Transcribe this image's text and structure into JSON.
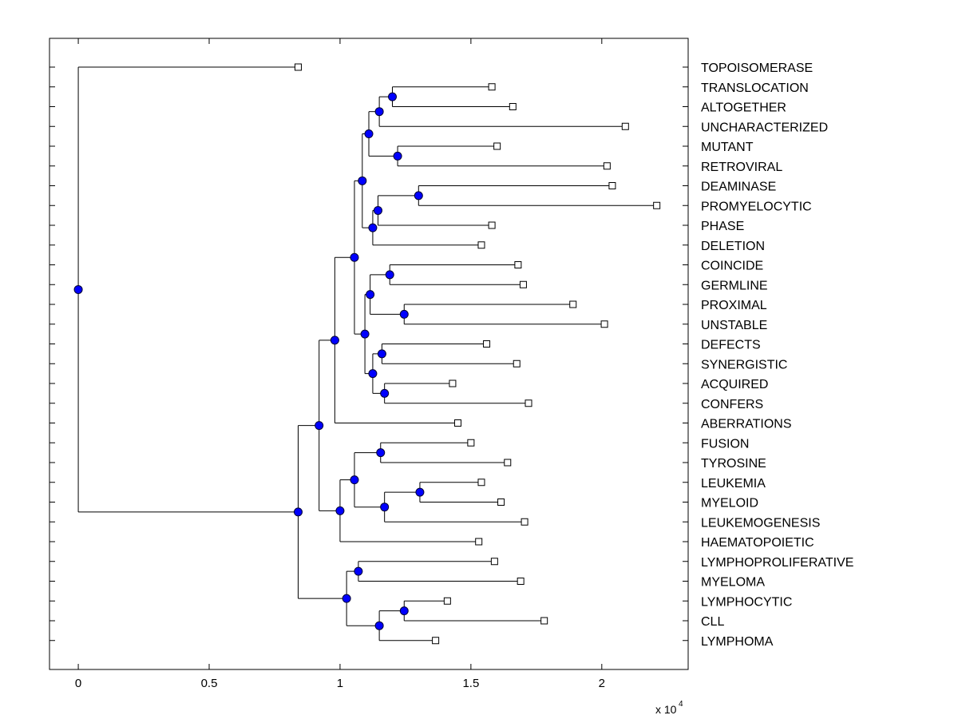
{
  "chart_data": {
    "type": "dendrogram",
    "title": "",
    "xlabel": "",
    "ylabel": "",
    "xlim": [
      -0.11,
      2.33
    ],
    "x_scale_multiplier": "x 10",
    "x_scale_exponent": "4",
    "x_ticks": [
      0,
      0.5,
      1,
      1.5,
      2
    ],
    "x_tick_labels": [
      "0",
      "0.5",
      "1",
      "1.5",
      "2"
    ],
    "colors": {
      "node_fill": "#0000ff",
      "line": "#000000",
      "leaf_fill": "#ffffff"
    },
    "leaves": [
      {
        "name": "TOPOISOMERASE",
        "x": 0.84
      },
      {
        "name": "TRANSLOCATION",
        "x": 1.58
      },
      {
        "name": "ALTOGETHER",
        "x": 1.66
      },
      {
        "name": "UNCHARACTERIZED",
        "x": 2.09
      },
      {
        "name": "MUTANT",
        "x": 1.6
      },
      {
        "name": "RETROVIRAL",
        "x": 2.02
      },
      {
        "name": "DEAMINASE",
        "x": 2.04
      },
      {
        "name": "PROMYELOCYTIC",
        "x": 2.21
      },
      {
        "name": "PHASE",
        "x": 1.58
      },
      {
        "name": "DELETION",
        "x": 1.54
      },
      {
        "name": "COINCIDE",
        "x": 1.68
      },
      {
        "name": "GERMLINE",
        "x": 1.7
      },
      {
        "name": "PROXIMAL",
        "x": 1.89
      },
      {
        "name": "UNSTABLE",
        "x": 2.01
      },
      {
        "name": "DEFECTS",
        "x": 1.56
      },
      {
        "name": "SYNERGISTIC",
        "x": 1.675
      },
      {
        "name": "ACQUIRED",
        "x": 1.43
      },
      {
        "name": "CONFERS",
        "x": 1.72
      },
      {
        "name": "ABERRATIONS",
        "x": 1.45
      },
      {
        "name": "FUSION",
        "x": 1.5
      },
      {
        "name": "TYROSINE",
        "x": 1.64
      },
      {
        "name": "LEUKEMIA",
        "x": 1.54
      },
      {
        "name": "MYELOID",
        "x": 1.615
      },
      {
        "name": "LEUKEMOGENESIS",
        "x": 1.705
      },
      {
        "name": "HAEMATOPOIETIC",
        "x": 1.53
      },
      {
        "name": "LYMPHOPROLIFERATIVE",
        "x": 1.59
      },
      {
        "name": "MYELOMA",
        "x": 1.69
      },
      {
        "name": "LYMPHOCYTIC",
        "x": 1.41
      },
      {
        "name": "CLL",
        "x": 1.78
      },
      {
        "name": "LYMPHOMA",
        "x": 1.365
      }
    ],
    "nodes": [
      {
        "id": "n1",
        "x": 1.2,
        "children": [
          "L1",
          "L2"
        ]
      },
      {
        "id": "n2",
        "x": 1.15,
        "children": [
          "n1",
          "L3"
        ]
      },
      {
        "id": "n3",
        "x": 1.22,
        "children": [
          "L4",
          "L5"
        ]
      },
      {
        "id": "n4",
        "x": 1.11,
        "children": [
          "n2",
          "n3"
        ]
      },
      {
        "id": "n5",
        "x": 1.3,
        "children": [
          "L6",
          "L7"
        ]
      },
      {
        "id": "n6",
        "x": 1.145,
        "children": [
          "n5",
          "L8"
        ]
      },
      {
        "id": "n7",
        "x": 1.125,
        "children": [
          "n6",
          "L9"
        ]
      },
      {
        "id": "n8",
        "x": 1.085,
        "children": [
          "n4",
          "n7"
        ]
      },
      {
        "id": "n9",
        "x": 1.19,
        "children": [
          "L10",
          "L11"
        ]
      },
      {
        "id": "n10",
        "x": 1.245,
        "children": [
          "L12",
          "L13"
        ]
      },
      {
        "id": "n11",
        "x": 1.115,
        "children": [
          "n9",
          "n10"
        ]
      },
      {
        "id": "n12",
        "x": 1.16,
        "children": [
          "L14",
          "L15"
        ]
      },
      {
        "id": "n13",
        "x": 1.17,
        "children": [
          "L16",
          "L17"
        ]
      },
      {
        "id": "n14",
        "x": 1.125,
        "children": [
          "n12",
          "n13"
        ]
      },
      {
        "id": "n15",
        "x": 1.095,
        "children": [
          "n11",
          "n14"
        ]
      },
      {
        "id": "n16",
        "x": 1.055,
        "children": [
          "n8",
          "n15"
        ]
      },
      {
        "id": "n17",
        "x": 0.98,
        "children": [
          "n16",
          "L18"
        ]
      },
      {
        "id": "n18",
        "x": 1.155,
        "children": [
          "L19",
          "L20"
        ]
      },
      {
        "id": "n19",
        "x": 1.305,
        "children": [
          "L21",
          "L22"
        ]
      },
      {
        "id": "n20",
        "x": 1.17,
        "children": [
          "n19",
          "L23"
        ]
      },
      {
        "id": "n21",
        "x": 1.055,
        "children": [
          "n18",
          "n20"
        ]
      },
      {
        "id": "n22",
        "x": 1.0,
        "children": [
          "n21",
          "L24"
        ]
      },
      {
        "id": "n23",
        "x": 0.92,
        "children": [
          "n17",
          "n22"
        ]
      },
      {
        "id": "n24",
        "x": 1.07,
        "children": [
          "L25",
          "L26"
        ]
      },
      {
        "id": "n25",
        "x": 1.245,
        "children": [
          "L27",
          "L28"
        ]
      },
      {
        "id": "n26",
        "x": 1.15,
        "children": [
          "n25",
          "L29"
        ]
      },
      {
        "id": "n27",
        "x": 1.025,
        "children": [
          "n24",
          "n26"
        ]
      },
      {
        "id": "n28",
        "x": 0.84,
        "children": [
          "n23",
          "n27"
        ]
      },
      {
        "id": "n29",
        "x": 0.0,
        "children": [
          "L0",
          "n28"
        ]
      }
    ]
  }
}
